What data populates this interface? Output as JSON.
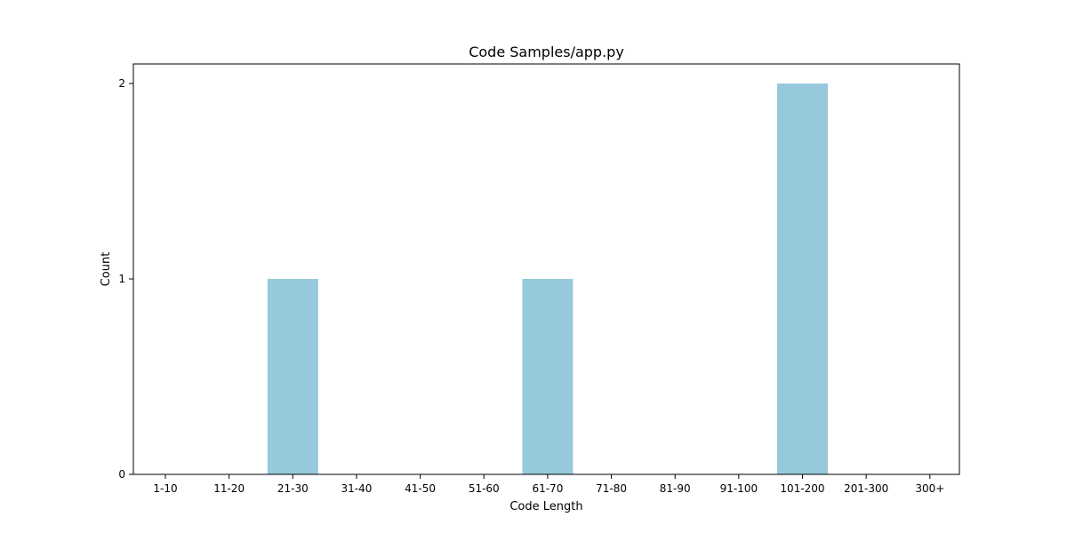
{
  "chart_data": {
    "type": "bar",
    "title": "Code Samples/app.py",
    "xlabel": "Code Length",
    "ylabel": "Count",
    "categories": [
      "1-10",
      "11-20",
      "21-30",
      "31-40",
      "41-50",
      "51-60",
      "61-70",
      "71-80",
      "81-90",
      "91-100",
      "101-200",
      "201-300",
      "300+"
    ],
    "values": [
      0,
      0,
      1,
      0,
      0,
      0,
      1,
      0,
      0,
      0,
      2,
      0,
      0
    ],
    "yticks": [
      "0",
      "1",
      "2"
    ],
    "ylim": [
      0,
      2.1
    ],
    "bar_color": "#96c9dc",
    "grid": false,
    "legend": false
  }
}
